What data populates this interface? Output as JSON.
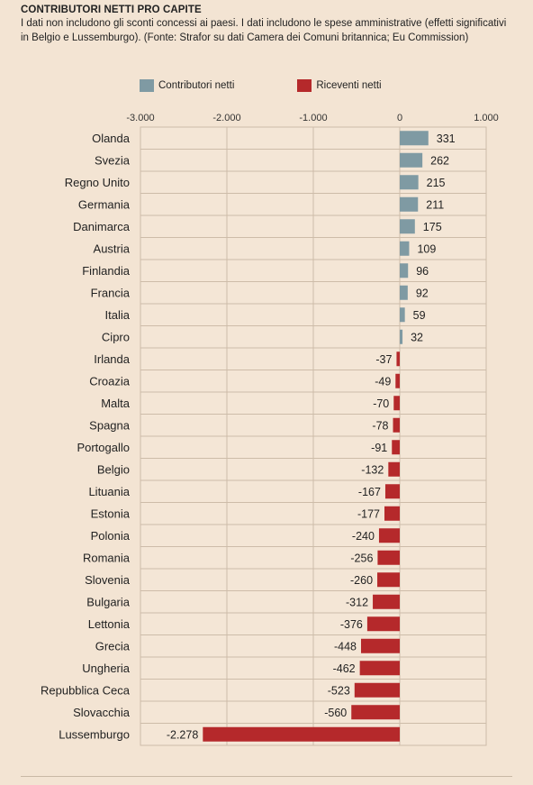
{
  "header": {
    "title": "CONTRIBUTORI NETTI PRO CAPITE",
    "subtitle": "I dati non includono gli sconti concessi ai paesi. I dati includono le spese amministrative (effetti significativi in Belgio e Lussemburgo). (Fonte: Strafor su dati Camera dei Comuni britannica; Eu Commission)"
  },
  "legend": [
    {
      "label": "Contributori netti",
      "color": "#7f9aa3"
    },
    {
      "label": "Riceventi netti",
      "color": "#b5292b"
    }
  ],
  "chart_data": {
    "type": "bar",
    "orientation": "horizontal",
    "title": "CONTRIBUTORI NETTI PRO CAPITE",
    "xlim": [
      -3000,
      1000
    ],
    "x_ticks": [
      -3000,
      -2000,
      -1000,
      0,
      1000
    ],
    "x_tick_labels": [
      "-3.000",
      "-2.000",
      "-1.000",
      "0",
      "1.000"
    ],
    "grid": true,
    "legend_position": "top",
    "positive_color": "#7f9aa3",
    "negative_color": "#b5292b",
    "categories": [
      "Olanda",
      "Svezia",
      "Regno Unito",
      "Germania",
      "Danimarca",
      "Austria",
      "Finlandia",
      "Francia",
      "Italia",
      "Cipro",
      "Irlanda",
      "Croazia",
      "Malta",
      "Spagna",
      "Portogallo",
      "Belgio",
      "Lituania",
      "Estonia",
      "Polonia",
      "Romania",
      "Slovenia",
      "Bulgaria",
      "Lettonia",
      "Grecia",
      "Ungheria",
      "Repubblica Ceca",
      "Slovacchia",
      "Lussemburgo"
    ],
    "values": [
      331,
      262,
      215,
      211,
      175,
      109,
      96,
      92,
      59,
      32,
      -37,
      -49,
      -70,
      -78,
      -91,
      -132,
      -167,
      -177,
      -240,
      -256,
      -260,
      -312,
      -376,
      -448,
      -462,
      -523,
      -560,
      -2278
    ],
    "value_labels": [
      "331",
      "262",
      "215",
      "211",
      "175",
      "109",
      "96",
      "92",
      "59",
      "32",
      "-37",
      "-49",
      "-70",
      "-78",
      "-91",
      "-132",
      "-167",
      "-177",
      "-240",
      "-256",
      "-260",
      "-312",
      "-376",
      "-448",
      "-462",
      "-523",
      "-560",
      "-2.278"
    ]
  }
}
